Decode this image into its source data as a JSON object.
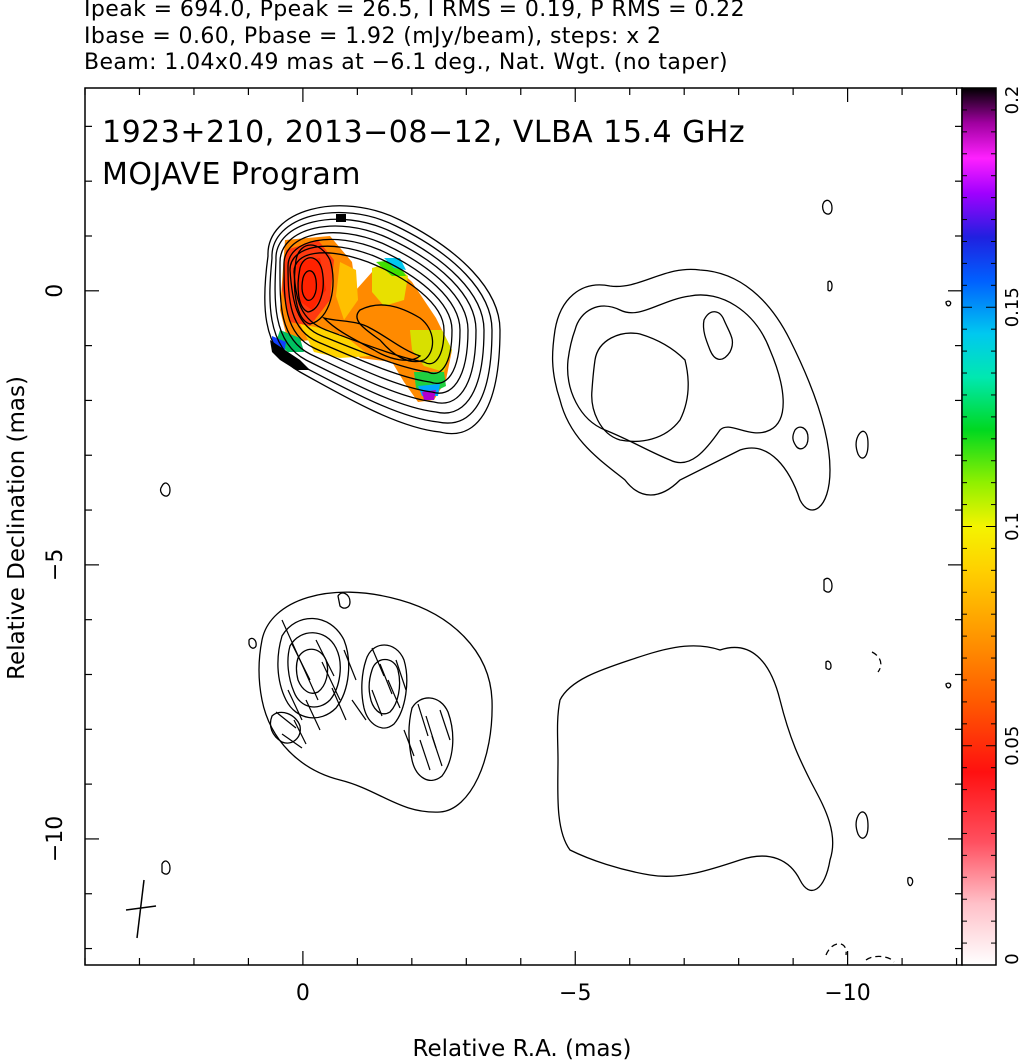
{
  "header": {
    "line1": "Ipeak = 694.0, Ppeak = 26.5, I RMS = 0.19, P RMS = 0.22",
    "line2": "Ibase = 0.60, Pbase = 1.92 (mJy/beam), steps: x 2",
    "line3": "Beam: 1.04x0.49 mas at −6.1 deg., Nat. Wgt. (no taper)"
  },
  "plot_labels": {
    "source": "1923+210, 2013−08−12, VLBA 15.4 GHz",
    "program": "MOJAVE Program"
  },
  "chart_data": {
    "type": "contour",
    "xlabel": "Relative R.A. (mas)",
    "ylabel": "Relative Declination (mas)",
    "xlim": [
      4.0,
      -12.1
    ],
    "ylim": [
      -12.3,
      3.7
    ],
    "x_ticks": [
      0,
      -5,
      -10
    ],
    "x_tick_labels": [
      "0",
      "−5",
      "−10"
    ],
    "y_ticks": [
      0,
      -5,
      -10
    ],
    "y_tick_labels": [
      "0",
      "−5",
      "−10"
    ],
    "colorbar": {
      "range": [
        0,
        0.2
      ],
      "ticks": [
        0,
        0.05,
        0.1,
        0.15,
        0.2
      ],
      "tick_labels": [
        "0",
        "0.05",
        "0.1",
        "0.15",
        "0.2"
      ]
    },
    "core_position_mas": [
      0,
      0
    ],
    "panels": [
      "upper: total intensity contours with fractional polarization color",
      "lower: polarized intensity contours with EVPA ticks"
    ]
  }
}
